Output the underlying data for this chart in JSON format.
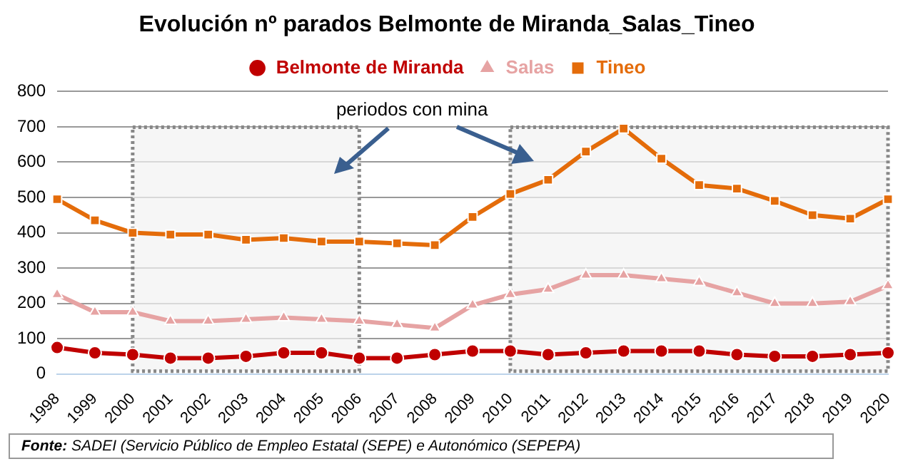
{
  "chart_data": {
    "type": "line",
    "title": "Evolución nº parados Belmonte de Miranda_Salas_Tineo",
    "categories": [
      "1998",
      "1999",
      "2000",
      "2001",
      "2002",
      "2003",
      "2004",
      "2005",
      "2006",
      "2007",
      "2008",
      "2009",
      "2010",
      "2011",
      "2012",
      "2013",
      "2014",
      "2015",
      "2016",
      "2017",
      "2018",
      "2019",
      "2020"
    ],
    "series": [
      {
        "name": "Belmonte de Miranda",
        "color": "#c00000",
        "marker": "circle",
        "values": [
          75,
          60,
          55,
          45,
          45,
          50,
          60,
          60,
          45,
          45,
          55,
          65,
          65,
          55,
          60,
          65,
          65,
          65,
          55,
          50,
          50,
          55,
          60
        ]
      },
      {
        "name": "Salas",
        "color": "#e6a3a3",
        "marker": "triangle",
        "values": [
          225,
          175,
          175,
          150,
          150,
          155,
          160,
          155,
          150,
          140,
          130,
          195,
          225,
          240,
          280,
          280,
          270,
          260,
          230,
          200,
          200,
          205,
          250
        ]
      },
      {
        "name": "Tineo",
        "color": "#e46c0a",
        "marker": "square",
        "values": [
          495,
          435,
          400,
          395,
          395,
          380,
          385,
          375,
          375,
          370,
          365,
          445,
          510,
          550,
          630,
          695,
          610,
          535,
          525,
          490,
          450,
          440,
          495
        ]
      }
    ],
    "ylim": [
      0,
      800
    ],
    "yticks": [
      0,
      100,
      200,
      300,
      400,
      500,
      600,
      700,
      800
    ],
    "grid": "y",
    "legend": "top",
    "line_style": "solid",
    "bands": [
      {
        "axis": "x",
        "from": "2000",
        "to": "2006",
        "color": "#f2f2f2"
      },
      {
        "axis": "x",
        "from": "2010",
        "to": "2020",
        "color": "#f2f2f2"
      }
    ],
    "annotations": [
      {
        "text": "periodos con mina",
        "x": "2010",
        "y": 620
      },
      "Fonte: SADEI (Servicio Público de Empleo Estatal (SEPE) e Autonómico (SEPEPA)"
    ]
  }
}
